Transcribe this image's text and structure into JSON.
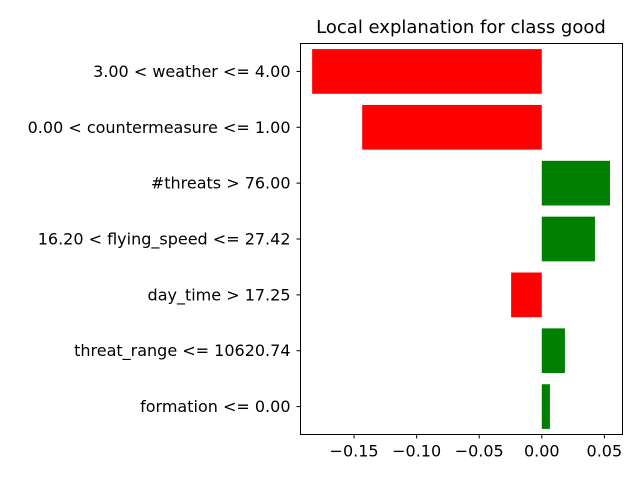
{
  "chart_data": {
    "type": "bar",
    "orientation": "horizontal",
    "title": "Local explanation for class good",
    "xlabel": "",
    "ylabel": "",
    "categories": [
      "3.00 < weather <= 4.00",
      "0.00 < countermeasure <= 1.00",
      "#threats > 76.00",
      "16.20 < flying_speed <= 27.42",
      "day_time > 17.25",
      "threat_range <= 10620.74",
      "formation <= 0.00"
    ],
    "values": [
      -0.1835,
      -0.1435,
      0.0545,
      0.0425,
      -0.0245,
      0.0185,
      0.0065
    ],
    "xlim": [
      -0.1928,
      0.0645
    ],
    "xticks": [
      -0.15,
      -0.1,
      -0.05,
      0.0,
      0.05
    ],
    "xtick_labels": [
      "−0.15",
      "−0.10",
      "−0.05",
      "0.00",
      "0.05"
    ],
    "grid": false,
    "colors": {
      "positive": "#008000",
      "negative": "#ff0000"
    }
  }
}
